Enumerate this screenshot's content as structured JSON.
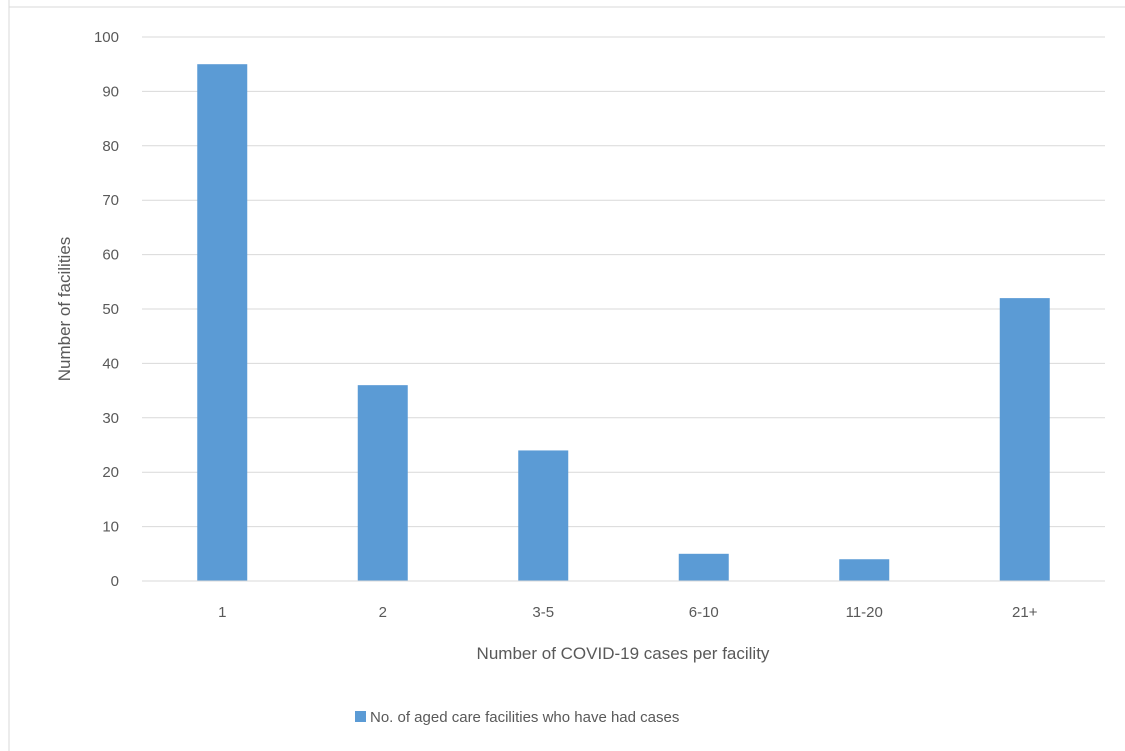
{
  "chart_data": {
    "type": "bar",
    "title": "",
    "xlabel": "Number of COVID-19 cases per facility",
    "ylabel": "Number of facilities",
    "categories": [
      "1",
      "2",
      "3-5",
      "6-10",
      "11-20",
      "21+"
    ],
    "series": [
      {
        "name": "No. of aged care facilities who have had cases",
        "values": [
          95,
          36,
          24,
          5,
          4,
          52
        ],
        "color": "#5b9bd5"
      }
    ],
    "ylim": [
      0,
      100
    ],
    "yticks": [
      "0",
      "10",
      "20",
      "30",
      "40",
      "50",
      "60",
      "70",
      "80",
      "90",
      "100"
    ],
    "grid": true,
    "legend_position": "bottom"
  }
}
